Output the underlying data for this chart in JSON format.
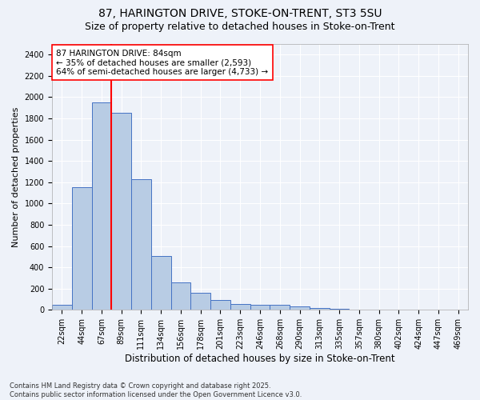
{
  "title1": "87, HARINGTON DRIVE, STOKE-ON-TRENT, ST3 5SU",
  "title2": "Size of property relative to detached houses in Stoke-on-Trent",
  "xlabel": "Distribution of detached houses by size in Stoke-on-Trent",
  "ylabel": "Number of detached properties",
  "categories": [
    "22sqm",
    "44sqm",
    "67sqm",
    "89sqm",
    "111sqm",
    "134sqm",
    "156sqm",
    "178sqm",
    "201sqm",
    "223sqm",
    "246sqm",
    "268sqm",
    "290sqm",
    "313sqm",
    "335sqm",
    "357sqm",
    "380sqm",
    "402sqm",
    "424sqm",
    "447sqm",
    "469sqm"
  ],
  "values": [
    50,
    1150,
    1950,
    1850,
    1230,
    510,
    260,
    160,
    90,
    55,
    50,
    45,
    30,
    15,
    8,
    4,
    3,
    2,
    1,
    1,
    0
  ],
  "bar_color": "#b8cce4",
  "bar_edge_color": "#4472c4",
  "background_color": "#eef2f9",
  "grid_color": "#ffffff",
  "vline_color": "red",
  "vline_index": 2.5,
  "annotation_line1": "87 HARINGTON DRIVE: 84sqm",
  "annotation_line2": "← 35% of detached houses are smaller (2,593)",
  "annotation_line3": "64% of semi-detached houses are larger (4,733) →",
  "annotation_box_color": "white",
  "annotation_box_edge": "red",
  "ylim": [
    0,
    2500
  ],
  "yticks": [
    0,
    200,
    400,
    600,
    800,
    1000,
    1200,
    1400,
    1600,
    1800,
    2000,
    2200,
    2400
  ],
  "footer": "Contains HM Land Registry data © Crown copyright and database right 2025.\nContains public sector information licensed under the Open Government Licence v3.0.",
  "title1_fontsize": 10,
  "title2_fontsize": 9,
  "xlabel_fontsize": 8.5,
  "ylabel_fontsize": 8,
  "annotation_fontsize": 7.5,
  "tick_fontsize": 7,
  "footer_fontsize": 6
}
